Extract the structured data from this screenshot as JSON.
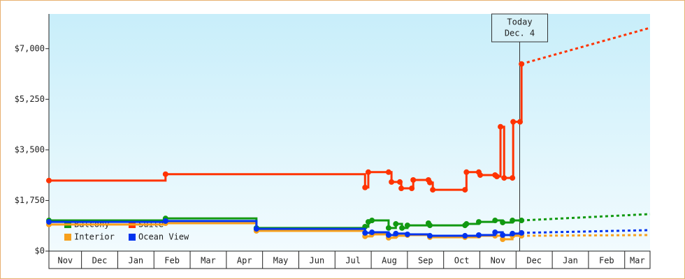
{
  "chart_data": {
    "type": "step-line",
    "ylim": [
      0,
      8200
    ],
    "yticks": [
      {
        "value": 0,
        "label": "$0"
      },
      {
        "value": 1750,
        "label": "$1,750"
      },
      {
        "value": 3500,
        "label": "$3,500"
      },
      {
        "value": 5250,
        "label": "$5,250"
      },
      {
        "value": 7000,
        "label": "$7,000"
      }
    ],
    "xlim": [
      0.1,
      16.7
    ],
    "xticks": [
      1,
      2,
      3,
      4,
      5,
      6,
      7,
      8,
      9,
      10,
      11,
      12,
      13,
      14,
      15,
      16
    ],
    "months": [
      "Nov",
      "Dec",
      "Jan",
      "Feb",
      "Mar",
      "Apr",
      "May",
      "Jun",
      "Jul",
      "Aug",
      "Sep",
      "Oct",
      "Nov",
      "Dec",
      "Jan",
      "Feb",
      "Mar"
    ],
    "annotation": {
      "x": 13.1,
      "lines": [
        "Today",
        "Dec. 4"
      ]
    },
    "series": [
      {
        "name": "Balcony",
        "color": "#119911",
        "x": [
          0.1,
          3.32,
          5.83,
          8.83,
          8.92,
          9.02,
          9.48,
          9.68,
          9.85,
          10.0,
          10.58,
          10.62,
          11.59,
          11.63,
          11.97,
          12.42,
          12.63,
          12.9,
          13.15
        ],
        "values": [
          1060,
          1130,
          800,
          845,
          1010,
          1060,
          800,
          940,
          800,
          890,
          965,
          890,
          890,
          940,
          1010,
          1060,
          990,
          1060,
          1060
        ],
        "forecast": {
          "x": [
            13.15,
            16.7
          ],
          "values": [
            1060,
            1280
          ]
        }
      },
      {
        "name": "Interior",
        "color": "#f7a01c",
        "x": [
          0.1,
          3.32,
          5.83,
          8.83,
          9.02,
          9.48,
          9.68,
          10.0,
          10.62,
          11.59,
          11.97,
          12.42,
          12.63,
          12.9,
          13.15
        ],
        "values": [
          920,
          965,
          700,
          510,
          580,
          460,
          530,
          555,
          480,
          480,
          530,
          530,
          410,
          530,
          530
        ],
        "forecast": {
          "x": [
            13.15,
            16.7
          ],
          "values": [
            530,
            555
          ]
        }
      },
      {
        "name": "Ocean View",
        "color": "#0033ee",
        "x": [
          0.1,
          3.32,
          5.83,
          8.83,
          9.02,
          9.48,
          9.68,
          10.0,
          10.62,
          11.59,
          11.97,
          12.42,
          12.63,
          12.9,
          13.15
        ],
        "values": [
          1010,
          1040,
          770,
          630,
          650,
          555,
          605,
          580,
          530,
          530,
          555,
          650,
          555,
          605,
          630
        ],
        "forecast": {
          "x": [
            13.15,
            16.7
          ],
          "values": [
            630,
            725
          ]
        }
      },
      {
        "name": "Suite",
        "color": "#ff3300",
        "x": [
          0.1,
          3.32,
          8.83,
          8.92,
          9.48,
          9.56,
          9.79,
          9.83,
          10.12,
          10.16,
          10.58,
          10.62,
          10.7,
          11.59,
          11.63,
          11.97,
          12.01,
          12.42,
          12.47,
          12.57,
          12.67,
          12.9,
          12.92,
          13.11,
          13.15
        ],
        "values": [
          2440,
          2660,
          2200,
          2730,
          2730,
          2390,
          2390,
          2170,
          2170,
          2460,
          2460,
          2370,
          2120,
          2120,
          2730,
          2730,
          2630,
          2630,
          2580,
          4300,
          2530,
          2530,
          4470,
          4470,
          6470
        ],
        "forecast": {
          "x": [
            13.15,
            16.7
          ],
          "values": [
            6470,
            7720
          ]
        }
      }
    ]
  }
}
